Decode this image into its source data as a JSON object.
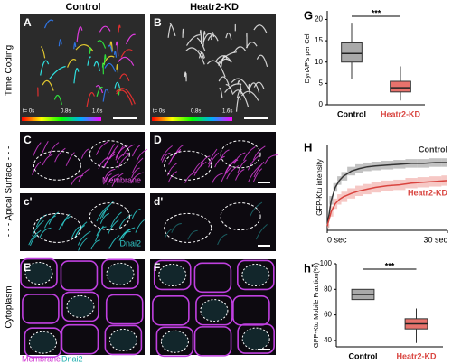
{
  "figure": {
    "column_headers": [
      "Control",
      "Heatr2-KD"
    ],
    "row_labels": [
      "Time Coding",
      "- - - Apical Surface - - -",
      "Cytoplasm"
    ],
    "panels": [
      {
        "letter": "A",
        "labels": [
          "t= 0s",
          "0.8s",
          "1.6s"
        ]
      },
      {
        "letter": "B",
        "labels": [
          "t= 0s",
          "0.8s",
          "1.6s"
        ]
      },
      {
        "letter": "C",
        "labels": [
          "Membrane"
        ]
      },
      {
        "letter": "D",
        "labels": []
      },
      {
        "letter": "c'",
        "labels": [
          "Dnai2"
        ]
      },
      {
        "letter": "d'",
        "labels": []
      },
      {
        "letter": "E",
        "labels": [
          "Membrane",
          "Dnai2"
        ]
      },
      {
        "letter": "F",
        "labels": []
      }
    ]
  },
  "chart_data": [
    {
      "type": "box",
      "letter": "G",
      "y_label": "DynAP's per Cell",
      "significance": "***",
      "categories": [
        "Control",
        "Heatr2-KD"
      ],
      "category_colors": [
        "#000000",
        "#d9443f"
      ],
      "colors": [
        "#a9a9a9",
        "#e8726c"
      ],
      "low": [
        6,
        1
      ],
      "q1": [
        10,
        3
      ],
      "median": [
        12,
        4
      ],
      "q3": [
        14.5,
        5.5
      ],
      "high": [
        19,
        9
      ],
      "ylim": [
        0,
        22
      ],
      "yticks": [
        0,
        5,
        10,
        15,
        20
      ]
    },
    {
      "type": "line",
      "letter": "H",
      "y_label": "GFP-Ktu intensity",
      "x": [
        0,
        1,
        2,
        3,
        4,
        6,
        8,
        10,
        12,
        15,
        18,
        21,
        24,
        27,
        30
      ],
      "xlim": [
        0,
        30
      ],
      "ylim": [
        0,
        1
      ],
      "xticks": [
        {
          "value": 0,
          "label": "0 sec"
        },
        {
          "value": 30,
          "label": "30 sec"
        }
      ],
      "series": [
        {
          "name": "Control",
          "color": "#333333",
          "band_color": "#9a9a9a",
          "values": [
            0.05,
            0.35,
            0.5,
            0.58,
            0.63,
            0.69,
            0.72,
            0.74,
            0.75,
            0.76,
            0.77,
            0.78,
            0.78,
            0.79,
            0.79
          ],
          "error": [
            0.02,
            0.05,
            0.05,
            0.05,
            0.05,
            0.05,
            0.05,
            0.05,
            0.05,
            0.05,
            0.05,
            0.05,
            0.05,
            0.05,
            0.05
          ]
        },
        {
          "name": "Heatr2-KD",
          "color": "#d9443f",
          "band_color": "#f0a49f",
          "values": [
            0.05,
            0.22,
            0.31,
            0.36,
            0.39,
            0.43,
            0.46,
            0.48,
            0.5,
            0.52,
            0.53,
            0.55,
            0.56,
            0.57,
            0.58
          ],
          "error": [
            0.02,
            0.06,
            0.06,
            0.06,
            0.06,
            0.06,
            0.06,
            0.06,
            0.06,
            0.06,
            0.06,
            0.06,
            0.06,
            0.06,
            0.06
          ]
        }
      ]
    },
    {
      "type": "box",
      "letter": "h'",
      "y_label": "GFP-Ktu Mobile Fraction(%)",
      "significance": "***",
      "categories": [
        "Control",
        "Heatr2-KD"
      ],
      "category_colors": [
        "#000000",
        "#d9443f"
      ],
      "colors": [
        "#a9a9a9",
        "#e8726c"
      ],
      "low": [
        62,
        38
      ],
      "q1": [
        72,
        49
      ],
      "median": [
        76,
        53
      ],
      "q3": [
        80,
        57
      ],
      "high": [
        92,
        65
      ],
      "ylim": [
        35,
        100
      ],
      "yticks": [
        40,
        60,
        80,
        100
      ]
    }
  ]
}
